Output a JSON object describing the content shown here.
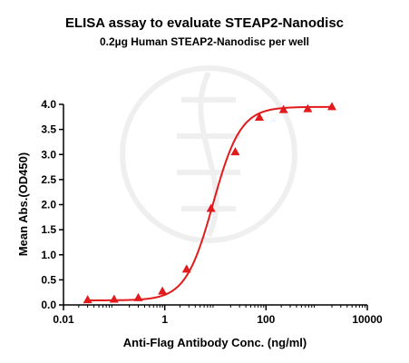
{
  "chart_data": {
    "type": "scatter",
    "title": "ELISA assay to evaluate STEAP2-Nanodisc",
    "subtitle": "0.2µg Human STEAP2-Nanodisc per well",
    "xlabel": "Anti-Flag Antibody Conc. (ng/ml)",
    "ylabel": "Mean Abs.(OD450)",
    "x_scale": "log",
    "xlim": [
      0.01,
      10000
    ],
    "ylim": [
      0,
      4.0
    ],
    "x_ticks": [
      0.01,
      1,
      100,
      10000
    ],
    "x_tick_labels": [
      "0.01",
      "1",
      "100",
      "10000"
    ],
    "y_ticks": [
      0.0,
      0.5,
      1.0,
      1.5,
      2.0,
      2.5,
      3.0,
      3.5,
      4.0
    ],
    "y_tick_labels": [
      "0.0",
      "0.5",
      "1.0",
      "1.5",
      "2.0",
      "2.5",
      "3.0",
      "3.5",
      "4.0"
    ],
    "grid": false,
    "marker": "triangle",
    "series": [
      {
        "x": [
          0.03,
          0.1,
          0.3,
          0.9,
          2.7,
          8.2,
          24.7,
          74,
          222,
          667,
          2000
        ],
        "y": [
          0.1,
          0.11,
          0.14,
          0.27,
          0.71,
          1.92,
          3.05,
          3.74,
          3.89,
          3.91,
          3.95
        ]
      }
    ],
    "fit_curve": {
      "bottom": 0.09,
      "top": 3.95,
      "ec50": 9.0,
      "hill": 1.6
    },
    "colors": {
      "series": "#e31a1c",
      "axis": "#000000"
    }
  }
}
